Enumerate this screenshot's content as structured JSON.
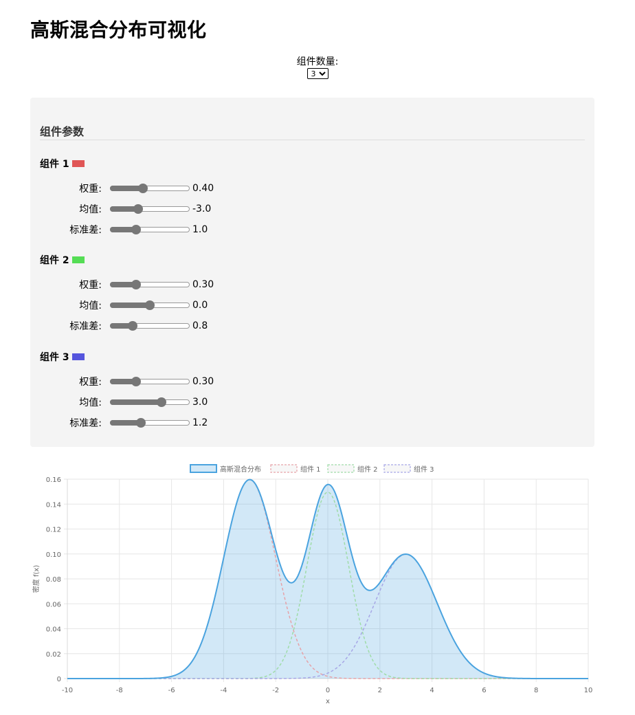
{
  "page": {
    "title": "高斯混合分布可视化"
  },
  "controls": {
    "count_label": "组件数量:",
    "count_value": "3",
    "count_options": [
      "3"
    ]
  },
  "panel": {
    "title": "组件参数",
    "components": [
      {
        "label": "组件 1",
        "color": "#e05555",
        "params": [
          {
            "label": "权重:",
            "value": "0.40",
            "level": 0.4
          },
          {
            "label": "均值:",
            "value": "-3.0",
            "level": 0.333
          },
          {
            "label": "标准差:",
            "value": "1.0",
            "level": 0.3
          }
        ]
      },
      {
        "label": "组件 2",
        "color": "#55dd55",
        "params": [
          {
            "label": "权重:",
            "value": "0.30",
            "level": 0.3
          },
          {
            "label": "均值:",
            "value": "0.0",
            "level": 0.5
          },
          {
            "label": "标准差:",
            "value": "0.8",
            "level": 0.25
          }
        ]
      },
      {
        "label": "组件 3",
        "color": "#5555dd",
        "params": [
          {
            "label": "权重:",
            "value": "0.30",
            "level": 0.3
          },
          {
            "label": "均值:",
            "value": "3.0",
            "level": 0.667
          },
          {
            "label": "标准差:",
            "value": "1.2",
            "level": 0.375
          }
        ]
      }
    ]
  },
  "chart_data": {
    "type": "area",
    "legend_position": "top-center",
    "grid": true,
    "xlabel": "x",
    "ylabel": "密度 f(x)",
    "xlim": [
      -10,
      10
    ],
    "ylim": [
      0,
      0.16
    ],
    "xticks": [
      "-10",
      "-8",
      "-6",
      "-4",
      "-2",
      "0",
      "2",
      "4",
      "6",
      "8",
      "10"
    ],
    "yticks": [
      "0",
      "0.02",
      "0.04",
      "0.06",
      "0.08",
      "0.10",
      "0.12",
      "0.14",
      "0.16"
    ],
    "series": [
      {
        "name": "高斯混合分布",
        "kind": "mixture",
        "color": "#4aa3df",
        "fill": "rgba(74,163,223,0.25)",
        "dashed": false
      },
      {
        "name": "组件 1",
        "kind": "component",
        "mean": -3.0,
        "std": 1.0,
        "weight": 0.4,
        "color": "#e6a2a8",
        "dashed": true
      },
      {
        "name": "组件 2",
        "kind": "component",
        "mean": 0.0,
        "std": 0.8,
        "weight": 0.3,
        "color": "#9fdca8",
        "dashed": true
      },
      {
        "name": "组件 3",
        "kind": "component",
        "mean": 3.0,
        "std": 1.2,
        "weight": 0.3,
        "color": "#a6a6e6",
        "dashed": true
      }
    ]
  }
}
